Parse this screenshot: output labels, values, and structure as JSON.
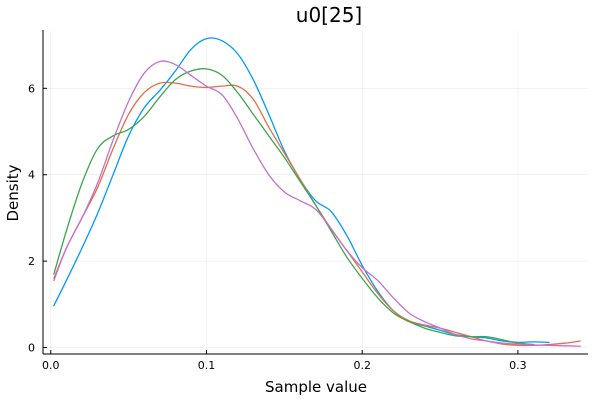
{
  "chart_data": {
    "type": "line",
    "title": "u0[25]",
    "xlabel": "Sample value",
    "ylabel": "Density",
    "xlim": [
      -0.005,
      0.345
    ],
    "ylim": [
      -0.15,
      7.35
    ],
    "xticks": [
      0.0,
      0.1,
      0.2,
      0.3
    ],
    "xtick_labels": [
      "0.0",
      "0.1",
      "0.2",
      "0.3"
    ],
    "yticks": [
      0,
      2,
      4,
      6
    ],
    "ytick_labels": [
      "0",
      "2",
      "4",
      "6"
    ],
    "grid": true,
    "legend": "none",
    "series": [
      {
        "color": "#009AFA",
        "points": [
          [
            0.002,
            0.97
          ],
          [
            0.01,
            1.55
          ],
          [
            0.02,
            2.3
          ],
          [
            0.03,
            3.1
          ],
          [
            0.04,
            4.0
          ],
          [
            0.05,
            4.9
          ],
          [
            0.06,
            5.55
          ],
          [
            0.07,
            5.95
          ],
          [
            0.08,
            6.4
          ],
          [
            0.09,
            6.9
          ],
          [
            0.1,
            7.15
          ],
          [
            0.11,
            7.1
          ],
          [
            0.12,
            6.8
          ],
          [
            0.13,
            6.2
          ],
          [
            0.14,
            5.4
          ],
          [
            0.15,
            4.55
          ],
          [
            0.16,
            3.9
          ],
          [
            0.17,
            3.4
          ],
          [
            0.18,
            3.15
          ],
          [
            0.19,
            2.6
          ],
          [
            0.2,
            1.9
          ],
          [
            0.21,
            1.3
          ],
          [
            0.22,
            0.85
          ],
          [
            0.23,
            0.6
          ],
          [
            0.24,
            0.5
          ],
          [
            0.25,
            0.4
          ],
          [
            0.26,
            0.3
          ],
          [
            0.27,
            0.25
          ],
          [
            0.28,
            0.22
          ],
          [
            0.29,
            0.15
          ],
          [
            0.3,
            0.12
          ],
          [
            0.31,
            0.13
          ],
          [
            0.32,
            0.12
          ]
        ]
      },
      {
        "color": "#E36F47",
        "points": [
          [
            0.002,
            1.6
          ],
          [
            0.01,
            2.3
          ],
          [
            0.02,
            3.0
          ],
          [
            0.03,
            3.7
          ],
          [
            0.04,
            4.6
          ],
          [
            0.05,
            5.4
          ],
          [
            0.06,
            5.9
          ],
          [
            0.07,
            6.12
          ],
          [
            0.08,
            6.12
          ],
          [
            0.09,
            6.05
          ],
          [
            0.1,
            6.02
          ],
          [
            0.11,
            6.05
          ],
          [
            0.12,
            6.05
          ],
          [
            0.13,
            5.75
          ],
          [
            0.14,
            5.1
          ],
          [
            0.15,
            4.5
          ],
          [
            0.16,
            3.9
          ],
          [
            0.17,
            3.3
          ],
          [
            0.18,
            2.75
          ],
          [
            0.19,
            2.25
          ],
          [
            0.2,
            1.75
          ],
          [
            0.21,
            1.25
          ],
          [
            0.22,
            0.85
          ],
          [
            0.23,
            0.62
          ],
          [
            0.24,
            0.52
          ],
          [
            0.25,
            0.45
          ],
          [
            0.26,
            0.35
          ],
          [
            0.27,
            0.25
          ],
          [
            0.28,
            0.15
          ],
          [
            0.29,
            0.08
          ],
          [
            0.3,
            0.05
          ],
          [
            0.31,
            0.05
          ],
          [
            0.32,
            0.07
          ],
          [
            0.33,
            0.1
          ],
          [
            0.34,
            0.15
          ]
        ]
      },
      {
        "color": "#3DA44D",
        "points": [
          [
            0.002,
            1.7
          ],
          [
            0.01,
            2.7
          ],
          [
            0.02,
            3.8
          ],
          [
            0.03,
            4.6
          ],
          [
            0.04,
            4.9
          ],
          [
            0.05,
            5.05
          ],
          [
            0.06,
            5.35
          ],
          [
            0.07,
            5.8
          ],
          [
            0.08,
            6.2
          ],
          [
            0.09,
            6.4
          ],
          [
            0.1,
            6.45
          ],
          [
            0.11,
            6.3
          ],
          [
            0.12,
            5.9
          ],
          [
            0.13,
            5.4
          ],
          [
            0.14,
            4.9
          ],
          [
            0.15,
            4.4
          ],
          [
            0.16,
            3.85
          ],
          [
            0.17,
            3.3
          ],
          [
            0.18,
            2.7
          ],
          [
            0.19,
            2.1
          ],
          [
            0.2,
            1.6
          ],
          [
            0.21,
            1.15
          ],
          [
            0.22,
            0.8
          ],
          [
            0.23,
            0.6
          ],
          [
            0.24,
            0.45
          ],
          [
            0.25,
            0.35
          ],
          [
            0.26,
            0.27
          ],
          [
            0.27,
            0.25
          ],
          [
            0.28,
            0.25
          ],
          [
            0.29,
            0.18
          ],
          [
            0.3,
            0.1
          ],
          [
            0.31,
            0.07
          ]
        ]
      },
      {
        "color": "#C271D2",
        "points": [
          [
            0.002,
            1.55
          ],
          [
            0.01,
            2.3
          ],
          [
            0.02,
            3.0
          ],
          [
            0.03,
            3.8
          ],
          [
            0.04,
            4.8
          ],
          [
            0.05,
            5.7
          ],
          [
            0.06,
            6.35
          ],
          [
            0.07,
            6.62
          ],
          [
            0.08,
            6.55
          ],
          [
            0.09,
            6.3
          ],
          [
            0.1,
            6.05
          ],
          [
            0.11,
            5.85
          ],
          [
            0.12,
            5.3
          ],
          [
            0.13,
            4.6
          ],
          [
            0.14,
            4.0
          ],
          [
            0.15,
            3.6
          ],
          [
            0.16,
            3.4
          ],
          [
            0.17,
            3.2
          ],
          [
            0.18,
            2.75
          ],
          [
            0.19,
            2.25
          ],
          [
            0.2,
            1.85
          ],
          [
            0.21,
            1.55
          ],
          [
            0.22,
            1.15
          ],
          [
            0.23,
            0.8
          ],
          [
            0.24,
            0.6
          ],
          [
            0.25,
            0.45
          ],
          [
            0.26,
            0.3
          ],
          [
            0.27,
            0.2
          ],
          [
            0.28,
            0.15
          ],
          [
            0.29,
            0.1
          ],
          [
            0.3,
            0.08
          ],
          [
            0.31,
            0.06
          ],
          [
            0.32,
            0.05
          ],
          [
            0.33,
            0.04
          ],
          [
            0.34,
            0.03
          ]
        ]
      }
    ]
  }
}
